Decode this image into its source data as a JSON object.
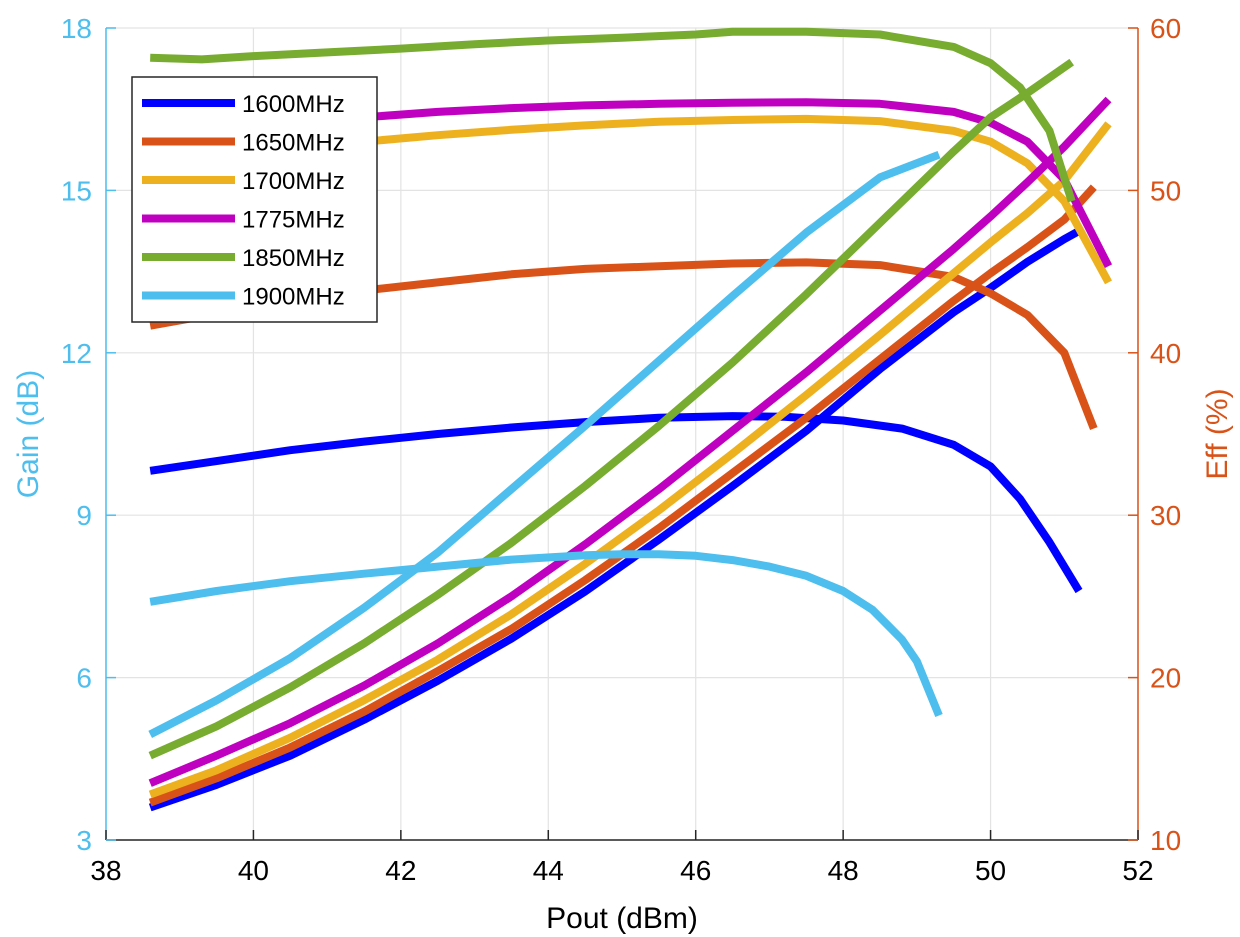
{
  "chart_data": {
    "type": "line",
    "title": "",
    "xlabel": "Pout (dBm)",
    "ylabel_left": "Gain (dB)",
    "ylabel_right": "Eff (%)",
    "xlim": [
      38,
      52
    ],
    "ylim_left": [
      3,
      18
    ],
    "ylim_right": [
      10,
      60
    ],
    "x_ticks": [
      38,
      40,
      42,
      44,
      46,
      48,
      50,
      52
    ],
    "y_ticks_left": [
      3,
      6,
      9,
      12,
      15,
      18
    ],
    "y_ticks_right": [
      10,
      20,
      30,
      40,
      50,
      60
    ],
    "grid": true,
    "legend_position": "top-left",
    "axis_colors": {
      "left": "#4DBEEE",
      "right": "#D95319",
      "x": "#262626"
    },
    "series": [
      {
        "name": "1600MHz",
        "color": "#0000FF",
        "gain": {
          "x": [
            38.6,
            39.5,
            40.5,
            41.5,
            42.5,
            43.5,
            44.5,
            45.5,
            46.5,
            47.2,
            48.0,
            48.8,
            49.5,
            50.0,
            50.4,
            50.8,
            51.2
          ],
          "y": [
            9.82,
            10.0,
            10.2,
            10.36,
            10.5,
            10.62,
            10.72,
            10.8,
            10.83,
            10.82,
            10.75,
            10.6,
            10.3,
            9.9,
            9.3,
            8.5,
            7.6
          ]
        },
        "eff": {
          "x": [
            38.6,
            39.5,
            40.5,
            41.5,
            42.5,
            43.5,
            44.5,
            45.5,
            46.5,
            47.5,
            48.5,
            49.5,
            50.0,
            50.5,
            51.0,
            51.2
          ],
          "y": [
            12.0,
            13.4,
            15.2,
            17.4,
            19.8,
            22.4,
            25.3,
            28.5,
            31.8,
            35.2,
            39.0,
            42.5,
            44.0,
            45.6,
            47.0,
            47.5
          ]
        }
      },
      {
        "name": "1650MHz",
        "color": "#D95319",
        "gain": {
          "x": [
            38.6,
            39.5,
            40.5,
            41.5,
            42.5,
            43.5,
            44.5,
            45.5,
            46.5,
            47.5,
            48.5,
            49.5,
            50.0,
            50.5,
            51.0,
            51.4
          ],
          "y": [
            12.5,
            12.72,
            12.95,
            13.15,
            13.3,
            13.45,
            13.55,
            13.6,
            13.65,
            13.67,
            13.62,
            13.4,
            13.1,
            12.7,
            12.0,
            10.6
          ]
        },
        "eff": {
          "x": [
            38.6,
            39.5,
            40.5,
            41.5,
            42.5,
            43.5,
            44.5,
            45.5,
            46.5,
            47.5,
            48.5,
            49.5,
            50.0,
            50.5,
            51.0,
            51.4
          ],
          "y": [
            12.3,
            13.8,
            15.7,
            17.9,
            20.4,
            23.0,
            26.0,
            29.2,
            32.6,
            36.0,
            39.6,
            43.2,
            44.9,
            46.5,
            48.2,
            50.2
          ]
        }
      },
      {
        "name": "1700MHz",
        "color": "#EDB120",
        "gain": {
          "x": [
            38.6,
            39.5,
            40.5,
            41.5,
            42.5,
            43.5,
            44.5,
            45.5,
            46.5,
            47.5,
            48.5,
            49.5,
            50.0,
            50.5,
            51.0,
            51.6
          ],
          "y": [
            15.4,
            15.58,
            15.75,
            15.9,
            16.02,
            16.12,
            16.2,
            16.27,
            16.3,
            16.32,
            16.28,
            16.1,
            15.9,
            15.5,
            14.8,
            13.3
          ]
        },
        "eff": {
          "x": [
            38.6,
            39.5,
            40.5,
            41.5,
            42.5,
            43.5,
            44.5,
            45.5,
            46.5,
            47.5,
            48.5,
            49.5,
            50.0,
            50.5,
            51.0,
            51.6
          ],
          "y": [
            12.8,
            14.3,
            16.3,
            18.6,
            21.1,
            23.9,
            27.0,
            30.3,
            33.8,
            37.4,
            41.1,
            44.9,
            46.8,
            48.6,
            50.6,
            54.1
          ]
        }
      },
      {
        "name": "1775MHz",
        "color": "#C000C0",
        "gain": {
          "x": [
            38.6,
            39.5,
            40.5,
            41.5,
            42.5,
            43.5,
            44.5,
            45.5,
            46.5,
            47.5,
            48.5,
            49.5,
            50.0,
            50.5,
            51.0,
            51.6
          ],
          "y": [
            15.9,
            16.08,
            16.22,
            16.35,
            16.45,
            16.52,
            16.57,
            16.6,
            16.62,
            16.63,
            16.6,
            16.45,
            16.25,
            15.9,
            15.2,
            13.6
          ]
        },
        "eff": {
          "x": [
            38.6,
            39.5,
            40.5,
            41.5,
            42.5,
            43.5,
            44.5,
            45.5,
            46.5,
            47.5,
            48.5,
            49.5,
            50.0,
            50.5,
            51.0,
            51.6
          ],
          "y": [
            13.5,
            15.2,
            17.2,
            19.5,
            22.1,
            25.0,
            28.2,
            31.6,
            35.2,
            38.8,
            42.6,
            46.4,
            48.4,
            50.5,
            52.7,
            55.6
          ]
        }
      },
      {
        "name": "1850MHz",
        "color": "#77AC30",
        "gain": {
          "x": [
            38.6,
            39.3,
            40.0,
            41.0,
            42.0,
            43.0,
            44.0,
            45.0,
            46.0,
            46.5,
            47.5,
            48.5,
            49.5,
            50.0,
            50.4,
            50.8,
            51.1
          ],
          "y": [
            17.45,
            17.42,
            17.48,
            17.55,
            17.62,
            17.7,
            17.77,
            17.82,
            17.88,
            17.93,
            17.93,
            17.88,
            17.65,
            17.35,
            16.9,
            16.1,
            14.8
          ]
        },
        "eff": {
          "x": [
            38.6,
            39.5,
            40.5,
            41.5,
            42.5,
            43.5,
            44.5,
            45.5,
            46.5,
            47.5,
            48.5,
            49.5,
            50.0,
            50.5,
            51.1
          ],
          "y": [
            15.2,
            17.0,
            19.4,
            22.1,
            25.1,
            28.3,
            31.8,
            35.5,
            39.4,
            43.6,
            48.0,
            52.4,
            54.5,
            56.0,
            57.9
          ]
        }
      },
      {
        "name": "1900MHz",
        "color": "#4DBEEE",
        "gain": {
          "x": [
            38.6,
            39.5,
            40.5,
            41.5,
            42.5,
            43.5,
            44.5,
            45.0,
            45.5,
            46.0,
            46.5,
            47.0,
            47.5,
            48.0,
            48.4,
            48.8,
            49.0,
            49.3
          ],
          "y": [
            7.4,
            7.6,
            7.78,
            7.92,
            8.05,
            8.18,
            8.26,
            8.28,
            8.28,
            8.25,
            8.17,
            8.05,
            7.88,
            7.6,
            7.25,
            6.7,
            6.3,
            5.3
          ]
        },
        "eff": {
          "x": [
            38.6,
            39.5,
            40.5,
            41.5,
            42.5,
            43.5,
            44.5,
            45.5,
            46.5,
            47.5,
            48.5,
            49.3
          ],
          "y": [
            16.5,
            18.6,
            21.2,
            24.3,
            27.7,
            31.6,
            35.5,
            39.5,
            43.5,
            47.4,
            50.8,
            52.2
          ]
        }
      }
    ]
  }
}
